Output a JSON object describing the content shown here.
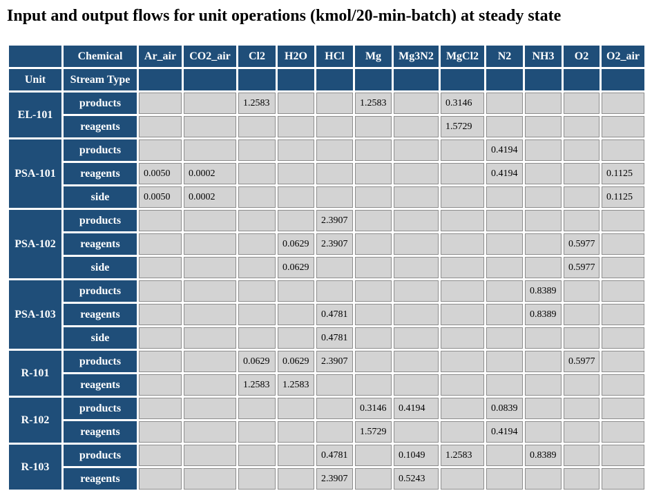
{
  "title": "Input and output flows for unit operations (kmol/20-min-batch) at steady state",
  "header": {
    "chemical_label": "Chemical",
    "unit_label": "Unit",
    "stream_type_label": "Stream Type",
    "chemicals": [
      "Ar_air",
      "CO2_air",
      "Cl2",
      "H2O",
      "HCl",
      "Mg",
      "Mg3N2",
      "MgCl2",
      "N2",
      "NH3",
      "O2",
      "O2_air"
    ]
  },
  "units": [
    {
      "name": "EL-101",
      "streams": [
        {
          "type": "products",
          "values": [
            "",
            "",
            "1.2583",
            "",
            "",
            "1.2583",
            "",
            "0.3146",
            "",
            "",
            "",
            ""
          ]
        },
        {
          "type": "reagents",
          "values": [
            "",
            "",
            "",
            "",
            "",
            "",
            "",
            "1.5729",
            "",
            "",
            "",
            ""
          ]
        }
      ]
    },
    {
      "name": "PSA-101",
      "streams": [
        {
          "type": "products",
          "values": [
            "",
            "",
            "",
            "",
            "",
            "",
            "",
            "",
            "0.4194",
            "",
            "",
            ""
          ]
        },
        {
          "type": "reagents",
          "values": [
            "0.0050",
            "0.0002",
            "",
            "",
            "",
            "",
            "",
            "",
            "0.4194",
            "",
            "",
            "0.1125"
          ]
        },
        {
          "type": "side",
          "values": [
            "0.0050",
            "0.0002",
            "",
            "",
            "",
            "",
            "",
            "",
            "",
            "",
            "",
            "0.1125"
          ]
        }
      ]
    },
    {
      "name": "PSA-102",
      "streams": [
        {
          "type": "products",
          "values": [
            "",
            "",
            "",
            "",
            "2.3907",
            "",
            "",
            "",
            "",
            "",
            "",
            ""
          ]
        },
        {
          "type": "reagents",
          "values": [
            "",
            "",
            "",
            "0.0629",
            "2.3907",
            "",
            "",
            "",
            "",
            "",
            "0.5977",
            ""
          ]
        },
        {
          "type": "side",
          "values": [
            "",
            "",
            "",
            "0.0629",
            "",
            "",
            "",
            "",
            "",
            "",
            "0.5977",
            ""
          ]
        }
      ]
    },
    {
      "name": "PSA-103",
      "streams": [
        {
          "type": "products",
          "values": [
            "",
            "",
            "",
            "",
            "",
            "",
            "",
            "",
            "",
            "0.8389",
            "",
            ""
          ]
        },
        {
          "type": "reagents",
          "values": [
            "",
            "",
            "",
            "",
            "0.4781",
            "",
            "",
            "",
            "",
            "0.8389",
            "",
            ""
          ]
        },
        {
          "type": "side",
          "values": [
            "",
            "",
            "",
            "",
            "0.4781",
            "",
            "",
            "",
            "",
            "",
            "",
            ""
          ]
        }
      ]
    },
    {
      "name": "R-101",
      "streams": [
        {
          "type": "products",
          "values": [
            "",
            "",
            "0.0629",
            "0.0629",
            "2.3907",
            "",
            "",
            "",
            "",
            "",
            "0.5977",
            ""
          ]
        },
        {
          "type": "reagents",
          "values": [
            "",
            "",
            "1.2583",
            "1.2583",
            "",
            "",
            "",
            "",
            "",
            "",
            "",
            ""
          ]
        }
      ]
    },
    {
      "name": "R-102",
      "streams": [
        {
          "type": "products",
          "values": [
            "",
            "",
            "",
            "",
            "",
            "0.3146",
            "0.4194",
            "",
            "0.0839",
            "",
            "",
            ""
          ]
        },
        {
          "type": "reagents",
          "values": [
            "",
            "",
            "",
            "",
            "",
            "1.5729",
            "",
            "",
            "0.4194",
            "",
            "",
            ""
          ]
        }
      ]
    },
    {
      "name": "R-103",
      "streams": [
        {
          "type": "products",
          "values": [
            "",
            "",
            "",
            "",
            "0.4781",
            "",
            "0.1049",
            "1.2583",
            "",
            "0.8389",
            "",
            ""
          ]
        },
        {
          "type": "reagents",
          "values": [
            "",
            "",
            "",
            "",
            "2.3907",
            "",
            "0.5243",
            "",
            "",
            "",
            "",
            ""
          ]
        }
      ]
    }
  ],
  "colors": {
    "header_bg": "#1f4e79",
    "header_text": "#ffffff",
    "cell_bg": "#d3d3d3",
    "cell_border": "#8c8c8c"
  }
}
